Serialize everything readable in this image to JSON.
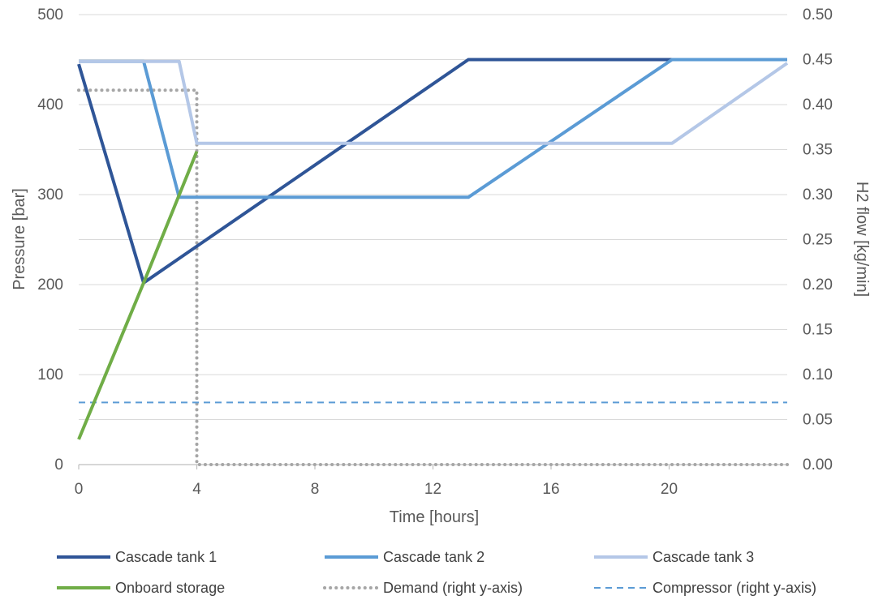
{
  "chart_data": {
    "type": "line",
    "title": "",
    "xlabel": "Time [hours]",
    "ylabel": "Pressure [bar]",
    "y2label": "H2 flow [kg/min]",
    "xlim": [
      0,
      24
    ],
    "ylim": [
      0,
      500
    ],
    "y2lim": [
      0,
      0.5
    ],
    "x_ticks": [
      0,
      4,
      8,
      12,
      16,
      20
    ],
    "x_tick_labels": [
      "0",
      "4",
      "8",
      "12",
      "16",
      "20"
    ],
    "y_ticks": [
      0,
      100,
      200,
      300,
      400,
      500
    ],
    "y_tick_labels": [
      "0",
      "100",
      "200",
      "300",
      "400",
      "500"
    ],
    "y2_ticks": [
      0,
      0.05,
      0.1,
      0.15,
      0.2,
      0.25,
      0.3,
      0.35,
      0.4,
      0.45,
      0.5
    ],
    "y2_tick_labels": [
      "0.00",
      "0.05",
      "0.10",
      "0.15",
      "0.20",
      "0.25",
      "0.30",
      "0.35",
      "0.40",
      "0.45",
      "0.50"
    ],
    "grid": true,
    "legend_position": "bottom",
    "series": [
      {
        "name": "Cascade tank 1",
        "axis": "left",
        "color": "#2f5597",
        "style": "solid",
        "points": [
          [
            0,
            445
          ],
          [
            2.2,
            202
          ],
          [
            13.2,
            450
          ],
          [
            24,
            450
          ]
        ]
      },
      {
        "name": "Cascade tank 2",
        "axis": "left",
        "color": "#5b9bd5",
        "style": "solid",
        "points": [
          [
            0,
            448
          ],
          [
            2.2,
            448
          ],
          [
            3.4,
            297
          ],
          [
            13.2,
            297
          ],
          [
            20.1,
            450
          ],
          [
            24,
            450
          ]
        ]
      },
      {
        "name": "Cascade tank 3",
        "axis": "left",
        "color": "#b4c7e7",
        "style": "solid",
        "points": [
          [
            0,
            448
          ],
          [
            3.4,
            448
          ],
          [
            4.0,
            357
          ],
          [
            20.1,
            357
          ],
          [
            24,
            446
          ]
        ]
      },
      {
        "name": "Onboard storage",
        "axis": "left",
        "color": "#70ad47",
        "style": "solid",
        "points": [
          [
            0,
            28
          ],
          [
            2.2,
            202
          ],
          [
            4.0,
            348
          ]
        ]
      },
      {
        "name": "Demand (right y-axis)",
        "axis": "right",
        "color": "#a6a6a6",
        "style": "dotted",
        "points": [
          [
            0,
            0.416
          ],
          [
            4.0,
            0.416
          ],
          [
            4.0,
            0.0
          ],
          [
            24,
            0.0
          ]
        ]
      },
      {
        "name": "Compressor (right y-axis)",
        "axis": "right",
        "color": "#5b9bd5",
        "style": "dashed",
        "points": [
          [
            0,
            0.069
          ],
          [
            24,
            0.069
          ]
        ]
      }
    ]
  }
}
